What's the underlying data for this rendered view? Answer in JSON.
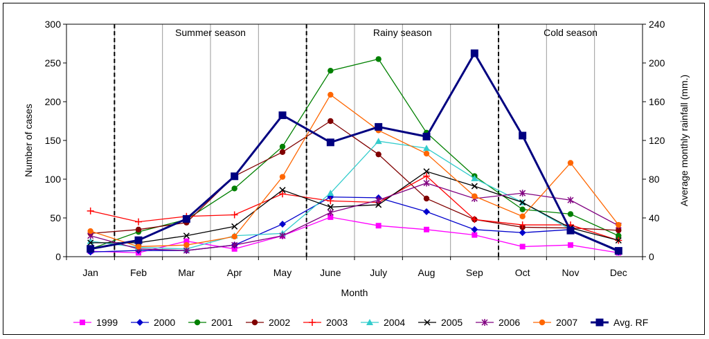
{
  "chart_data": {
    "type": "line",
    "xlabel": "Month",
    "ylabel": "Number of cases",
    "y2label": "Average monthly rainfall (mm.)",
    "ylim": [
      0,
      300
    ],
    "y2lim": [
      0,
      240
    ],
    "yticks": [
      "0",
      "50",
      "100",
      "150",
      "200",
      "250",
      "300"
    ],
    "y2ticks": [
      "0",
      "40",
      "80",
      "120",
      "160",
      "200",
      "240"
    ],
    "categories": [
      "Jan",
      "Feb",
      "Mar",
      "Apr",
      "May",
      "June",
      "July",
      "Aug",
      "Sep",
      "Oct",
      "Nov",
      "Dec"
    ],
    "seasons": [
      {
        "label": "Summer season",
        "start": 1,
        "end": 5
      },
      {
        "label": "Rainy season",
        "start": 5,
        "end": 9
      },
      {
        "label": "Cold season",
        "start": 9,
        "end": 12
      }
    ],
    "series": [
      {
        "name": "1999",
        "color": "#ff00ff",
        "marker": "square",
        "axis": "left",
        "values": [
          7,
          5,
          20,
          10,
          27,
          51,
          40,
          35,
          28,
          13,
          15,
          5
        ]
      },
      {
        "name": "2000",
        "color": "#0000cc",
        "marker": "diamond",
        "axis": "left",
        "values": [
          6,
          8,
          8,
          15,
          42,
          77,
          76,
          58,
          35,
          31,
          35,
          6
        ]
      },
      {
        "name": "2001",
        "color": "#008000",
        "marker": "circle",
        "axis": "left",
        "values": [
          10,
          32,
          48,
          88,
          142,
          240,
          255,
          160,
          104,
          61,
          55,
          27
        ]
      },
      {
        "name": "2002",
        "color": "#800000",
        "marker": "circle",
        "axis": "left",
        "values": [
          30,
          35,
          44,
          104,
          135,
          175,
          132,
          75,
          48,
          38,
          37,
          34
        ]
      },
      {
        "name": "2003",
        "color": "#ff0000",
        "marker": "plus",
        "axis": "left",
        "values": [
          59,
          45,
          52,
          54,
          81,
          72,
          70,
          104,
          48,
          41,
          41,
          21
        ]
      },
      {
        "name": "2004",
        "color": "#33cccc",
        "marker": "triangle",
        "axis": "left",
        "values": [
          20,
          12,
          10,
          27,
          30,
          82,
          149,
          140,
          101,
          70,
          35,
          8
        ]
      },
      {
        "name": "2005",
        "color": "#000000",
        "marker": "x",
        "axis": "left",
        "values": [
          18,
          18,
          27,
          39,
          86,
          64,
          67,
          110,
          91,
          70,
          37,
          21
        ]
      },
      {
        "name": "2006",
        "color": "#800080",
        "marker": "star",
        "axis": "left",
        "values": [
          27,
          10,
          8,
          15,
          27,
          57,
          73,
          95,
          75,
          82,
          73,
          40
        ]
      },
      {
        "name": "2007",
        "color": "#ff6600",
        "marker": "circle",
        "axis": "left",
        "values": [
          33,
          13,
          15,
          26,
          103,
          209,
          163,
          133,
          78,
          52,
          121,
          41
        ]
      },
      {
        "name": "Avg. RF",
        "color": "#000080",
        "marker": "bigsquare",
        "axis": "right",
        "values": [
          8,
          17,
          39,
          83,
          146,
          118,
          134,
          124,
          210,
          125,
          27,
          6
        ]
      }
    ]
  }
}
